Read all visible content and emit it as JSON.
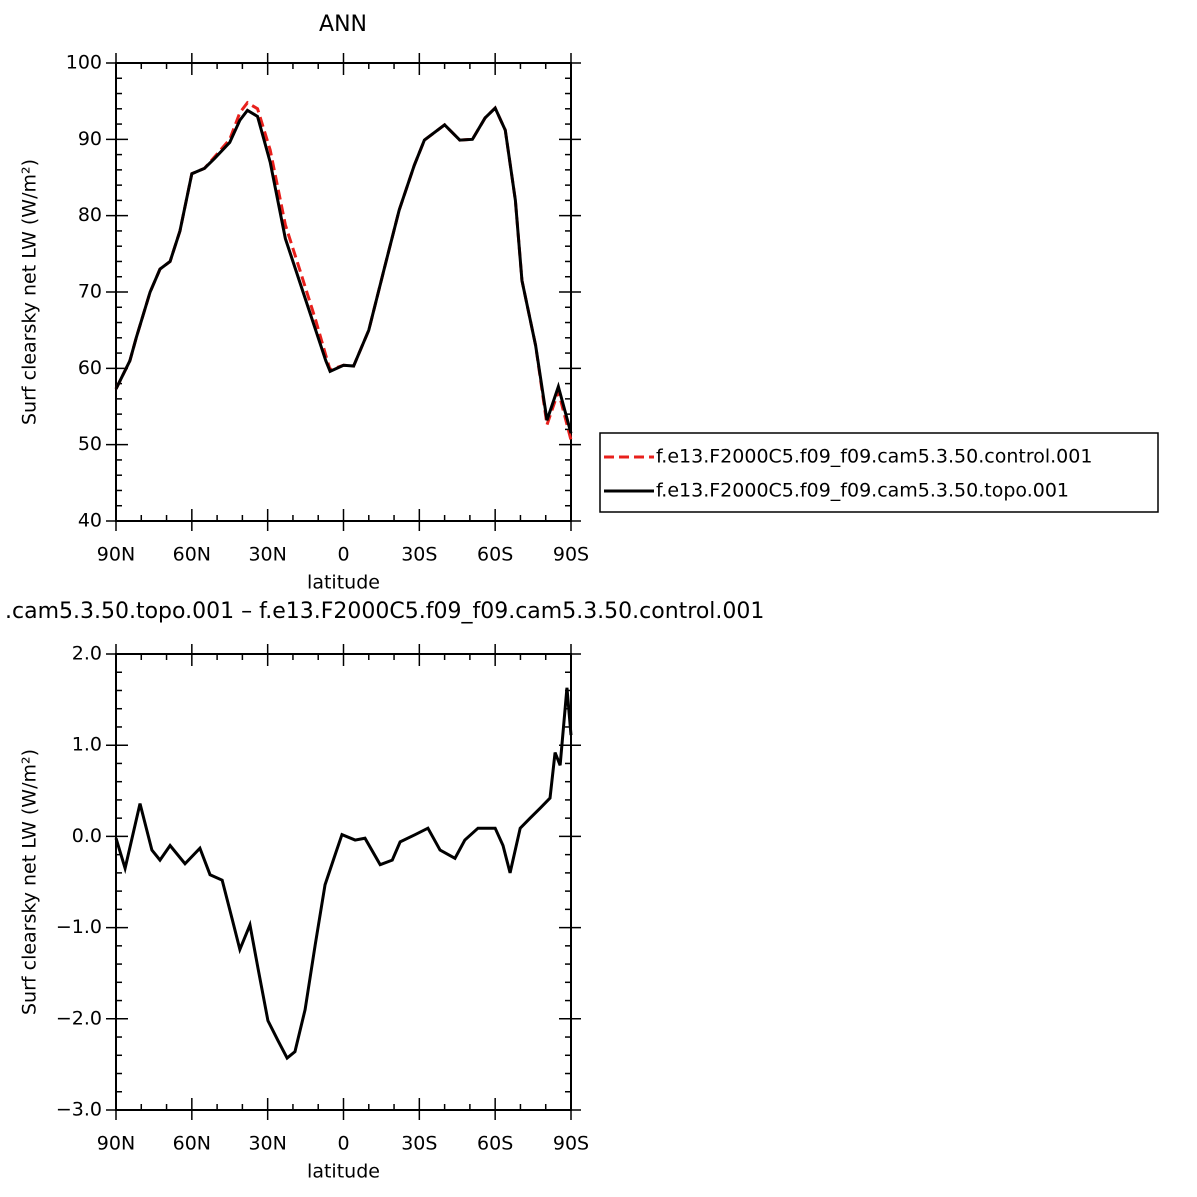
{
  "chart_data": [
    {
      "type": "line",
      "title": "ANN",
      "xlabel": "latitude",
      "ylabel": "Surf clearsky net LW (W/m²)",
      "x": [
        90,
        84.5,
        82,
        76.5,
        72.6,
        68.6,
        64.7,
        60,
        55,
        51,
        45,
        41,
        38,
        34,
        29,
        23,
        17,
        11,
        7,
        5.3,
        0,
        -4,
        -10,
        -16,
        -22,
        -28,
        -32,
        -40,
        -46,
        -51,
        -56,
        -60,
        -64,
        -68,
        -70.6,
        -76,
        -80.5,
        -85,
        -90
      ],
      "series": [
        {
          "name": "f.e13.F2000C5.f09_f09.cam5.3.50.control.001",
          "color": "#e8201c",
          "style": "dashed",
          "values": [
            57.3,
            61,
            64,
            70,
            73,
            74,
            78,
            85.5,
            86.2,
            87.7,
            90,
            93.5,
            94.8,
            94,
            88.6,
            78.8,
            72.6,
            66.3,
            61.7,
            59.8,
            60.4,
            60.3,
            65,
            72.9,
            80.7,
            86.6,
            89.9,
            91.9,
            89.9,
            90,
            92.8,
            94.1,
            91.2,
            82,
            71.5,
            63,
            52.6,
            57,
            50.6
          ]
        },
        {
          "name": "f.e13.F2000C5.f09_f09.cam5.3.50.topo.001",
          "color": "#000000",
          "style": "solid",
          "values": [
            57.3,
            61,
            64,
            70,
            73,
            74,
            78,
            85.5,
            86.2,
            87.5,
            89.6,
            92.5,
            93.8,
            93,
            87,
            77,
            71,
            65,
            61,
            59.6,
            60.4,
            60.3,
            65,
            72.9,
            80.7,
            86.6,
            89.9,
            91.9,
            89.9,
            90,
            92.8,
            94.1,
            91.2,
            82,
            71.5,
            63,
            53.2,
            57.6,
            51.5
          ]
        }
      ],
      "xlim": [
        90,
        -90
      ],
      "ylim": [
        40,
        100
      ],
      "xticks": [
        {
          "value": 90,
          "label": "90N"
        },
        {
          "value": 60,
          "label": "60N"
        },
        {
          "value": 30,
          "label": "30N"
        },
        0,
        {
          "value": -30,
          "label": "30S"
        },
        {
          "value": -60,
          "label": "60S"
        },
        {
          "value": -90,
          "label": "90S"
        }
      ],
      "yticks": [
        40,
        50,
        60,
        70,
        80,
        90,
        100
      ],
      "legend": "right"
    },
    {
      "type": "line",
      "title": ".cam5.3.50.topo.001 – f.e13.F2000C5.f09_f09.cam5.3.50.control.001",
      "xlabel": "latitude",
      "ylabel": "Surf clearsky net LW (W/m²)",
      "x": [
        90,
        86.4,
        80.5,
        75.8,
        72.6,
        68.6,
        62.7,
        56.8,
        52.8,
        48,
        44.1,
        41,
        37,
        33.8,
        29.9,
        25.9,
        22.3,
        19.2,
        15.2,
        11.2,
        7.3,
        3.3,
        0.6,
        -4.6,
        -8.5,
        -14.5,
        -19.3,
        -22.4,
        -28.4,
        -33.4,
        -38.2,
        -44.1,
        -48,
        -53.2,
        -60,
        -63.1,
        -65.9,
        -69.9,
        -73.8,
        -77.8,
        -81.7,
        -83.7,
        -85.7,
        -88.4,
        -90
      ],
      "series": [
        {
          "color": "#000000",
          "style": "solid",
          "values": [
            -0.02,
            -0.35,
            0.36,
            -0.15,
            -0.26,
            -0.1,
            -0.3,
            -0.13,
            -0.42,
            -0.48,
            -0.9,
            -1.24,
            -0.97,
            -1.45,
            -2.02,
            -2.24,
            -2.43,
            -2.36,
            -1.9,
            -1.19,
            -0.53,
            -0.2,
            0.02,
            -0.04,
            -0.02,
            -0.31,
            -0.26,
            -0.06,
            0.02,
            0.09,
            -0.15,
            -0.24,
            -0.04,
            0.09,
            0.09,
            -0.1,
            -0.4,
            0.09,
            0.2,
            0.31,
            0.42,
            0.92,
            0.78,
            1.63,
            1.11
          ]
        }
      ],
      "xlim": [
        90,
        -90
      ],
      "ylim": [
        -3,
        2
      ],
      "xticks": [
        {
          "value": 90,
          "label": "90N"
        },
        {
          "value": 60,
          "label": "60N"
        },
        {
          "value": 30,
          "label": "30N"
        },
        0,
        {
          "value": -30,
          "label": "30S"
        },
        {
          "value": -60,
          "label": "60S"
        },
        {
          "value": -90,
          "label": "90S"
        }
      ],
      "yticks": [
        {
          "value": -3,
          "label": "−3.0"
        },
        {
          "value": -2,
          "label": "−2.0"
        },
        {
          "value": -1,
          "label": "−1.0"
        },
        {
          "value": 0,
          "label": "0.0"
        },
        {
          "value": 1,
          "label": "1.0"
        },
        {
          "value": 2,
          "label": "2.0"
        }
      ]
    }
  ]
}
